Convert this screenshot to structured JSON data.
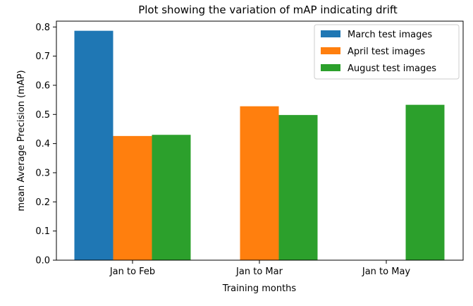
{
  "chart_data": {
    "type": "bar",
    "title": "Plot showing the variation of mAP indicating drift",
    "xlabel": "Training months",
    "ylabel": "mean Average Precision (mAP)",
    "categories": [
      "Jan to Feb",
      "Jan to Mar",
      "Jan to May"
    ],
    "ylim": [
      0,
      0.82
    ],
    "yticks": [
      0.0,
      0.1,
      0.2,
      0.3,
      0.4,
      0.5,
      0.6,
      0.7,
      0.8
    ],
    "grid": false,
    "legend_position": "top-right",
    "series": [
      {
        "name": "March test images",
        "color": "#1f77b4",
        "values": [
          0.787,
          null,
          null
        ]
      },
      {
        "name": "April test images",
        "color": "#ff7f0e",
        "values": [
          0.426,
          0.528,
          null
        ]
      },
      {
        "name": "August test images",
        "color": "#2ca02c",
        "values": [
          0.43,
          0.498,
          0.533
        ]
      }
    ]
  }
}
